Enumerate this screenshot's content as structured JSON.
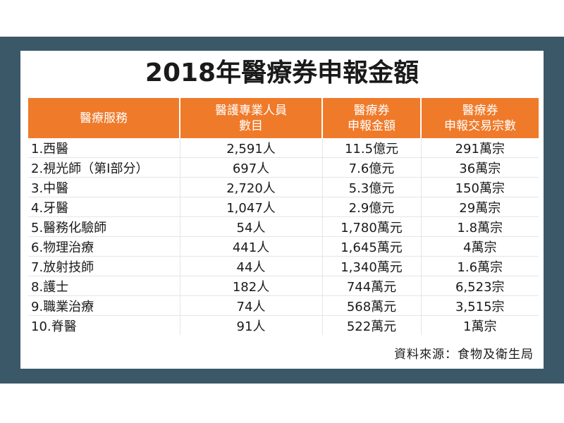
{
  "title": "2018年醫療券申報金額",
  "table": {
    "headers": [
      [
        "醫療服務"
      ],
      [
        "醫護專業人員",
        "數目"
      ],
      [
        "醫療券",
        "申報金額"
      ],
      [
        "醫療券",
        "申報交易宗數"
      ]
    ],
    "rows": [
      [
        "1.西醫",
        "2,591人",
        "11.5億元",
        "291萬宗"
      ],
      [
        "2.視光師（第I部分）",
        "697人",
        "7.6億元",
        "36萬宗"
      ],
      [
        "3.中醫",
        "2,720人",
        "5.3億元",
        "150萬宗"
      ],
      [
        "4.牙醫",
        "1,047人",
        "2.9億元",
        "29萬宗"
      ],
      [
        "5.醫務化驗師",
        "54人",
        "1,780萬元",
        "1.8萬宗"
      ],
      [
        "6.物理治療",
        "441人",
        "1,645萬元",
        "4萬宗"
      ],
      [
        "7.放射技師",
        "44人",
        "1,340萬元",
        "1.6萬宗"
      ],
      [
        "8.護士",
        "182人",
        "744萬元",
        "6,523宗"
      ],
      [
        "9.職業治療",
        "74人",
        "568萬元",
        "3,515宗"
      ],
      [
        "10.脊醫",
        "91人",
        "522萬元",
        "1萬宗"
      ]
    ]
  },
  "source": "資料來源：食物及衛生局",
  "colors": {
    "band": "#3b5868",
    "header": "#ef7a2a",
    "panel": "#ffffff"
  }
}
